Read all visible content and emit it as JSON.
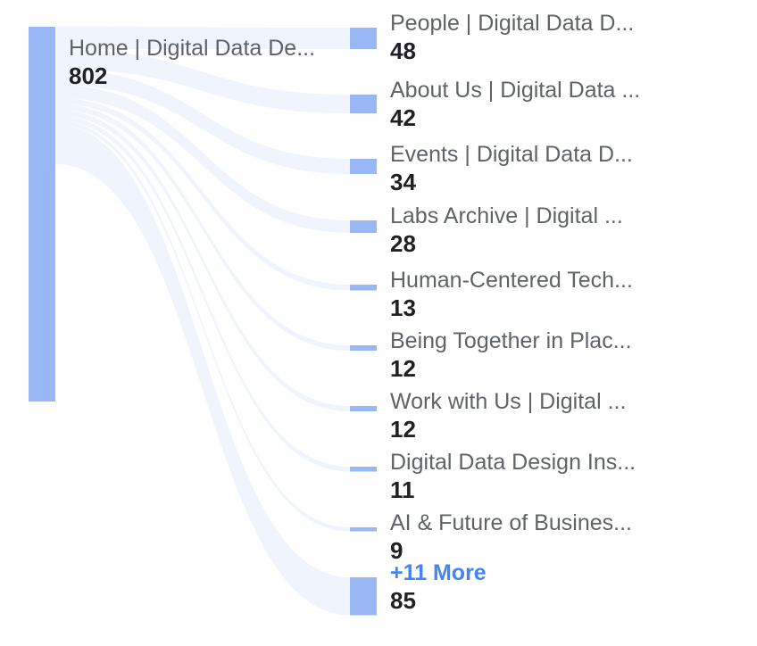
{
  "colors": {
    "node": "#99b6f5",
    "link": "#eef3fd",
    "label": "#5f6368",
    "value": "#202124",
    "more": "#4285f4"
  },
  "chart_data": {
    "type": "sankey",
    "source": {
      "label": "Home | Digital Data De...",
      "value": 802
    },
    "targets": [
      {
        "label": "People | Digital Data D...",
        "value": 48
      },
      {
        "label": "About Us | Digital Data ...",
        "value": 42
      },
      {
        "label": "Events | Digital Data D...",
        "value": 34
      },
      {
        "label": "Labs Archive | Digital ...",
        "value": 28
      },
      {
        "label": "Human-Centered Tech...",
        "value": 13
      },
      {
        "label": "Being Together in Plac...",
        "value": 12
      },
      {
        "label": "Work with Us | Digital ...",
        "value": 12
      },
      {
        "label": "Digital Data Design Ins...",
        "value": 11
      },
      {
        "label": "AI & Future of Busines...",
        "value": 9
      },
      {
        "label": "+11 More",
        "value": 85,
        "is_more": true
      }
    ]
  }
}
